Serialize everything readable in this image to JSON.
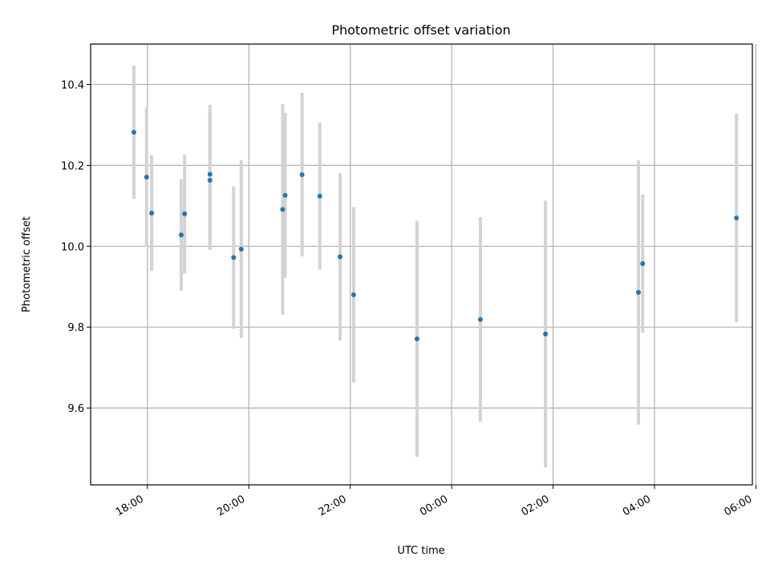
{
  "chart_data": {
    "type": "scatter",
    "title": "Photometric offset variation",
    "xlabel": "UTC time",
    "ylabel": "Photometric offset",
    "x_axis_kind": "time",
    "x_axis_hour_range": [
      16.88,
      29.93
    ],
    "ylim": [
      9.41,
      10.5
    ],
    "x_ticks": [
      "18:00",
      "20:00",
      "22:00",
      "00:00",
      "02:00",
      "04:00",
      "06:00"
    ],
    "y_ticks": [
      "9.6",
      "9.8",
      "10.0",
      "10.2",
      "10.4"
    ],
    "grid": true,
    "colors": {
      "point": "#1f77b4",
      "error_bar": "#d3d3d3"
    },
    "series": [
      {
        "name": "",
        "points": [
          {
            "t": "17:44",
            "y": 10.282,
            "err": 0.165
          },
          {
            "t": "17:59",
            "y": 10.171,
            "err": 0.172
          },
          {
            "t": "18:05",
            "y": 10.082,
            "err": 0.143
          },
          {
            "t": "18:40",
            "y": 10.028,
            "err": 0.138
          },
          {
            "t": "18:44",
            "y": 10.08,
            "err": 0.147
          },
          {
            "t": "19:14",
            "y": 10.178,
            "err": 0.172
          },
          {
            "t": "19:14",
            "y": 10.163,
            "err": 0.172
          },
          {
            "t": "19:42",
            "y": 9.972,
            "err": 0.176
          },
          {
            "t": "19:51",
            "y": 9.993,
            "err": 0.22
          },
          {
            "t": "20:40",
            "y": 10.091,
            "err": 0.26
          },
          {
            "t": "20:43",
            "y": 10.126,
            "err": 0.204
          },
          {
            "t": "21:03",
            "y": 10.177,
            "err": 0.202
          },
          {
            "t": "21:24",
            "y": 10.124,
            "err": 0.182
          },
          {
            "t": "21:48",
            "y": 9.974,
            "err": 0.207
          },
          {
            "t": "22:04",
            "y": 9.88,
            "err": 0.217
          },
          {
            "t": "23:19",
            "y": 9.771,
            "err": 0.292
          },
          {
            "t": "00:34",
            "y": 9.819,
            "err": 0.253
          },
          {
            "t": "01:51",
            "y": 9.783,
            "err": 0.33
          },
          {
            "t": "03:41",
            "y": 9.886,
            "err": 0.327
          },
          {
            "t": "03:46",
            "y": 9.957,
            "err": 0.171
          },
          {
            "t": "05:37",
            "y": 10.07,
            "err": 0.258
          }
        ]
      }
    ]
  }
}
